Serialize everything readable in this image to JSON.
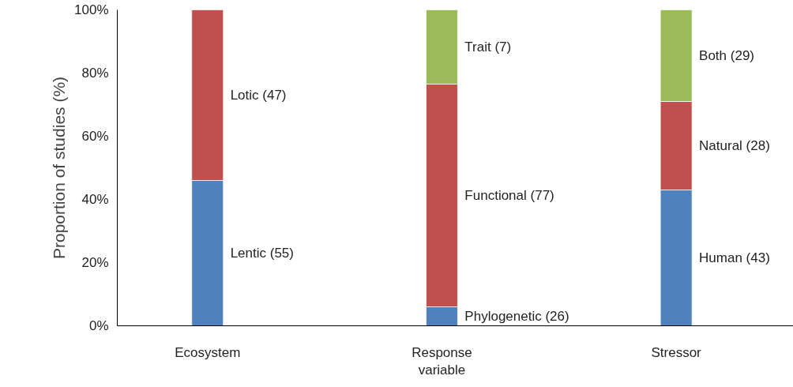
{
  "chart_data": {
    "type": "bar",
    "stacked": true,
    "ylabel": "Proportion of studies (%)",
    "categories": [
      "Ecosystem",
      "Response variable",
      "Stressor"
    ],
    "series": [
      {
        "color": "#4f81bd",
        "values": [
          46,
          6,
          43
        ]
      },
      {
        "color": "#c0504d",
        "values": [
          54,
          70.5,
          28
        ]
      },
      {
        "color": "#9bbb59",
        "values": [
          null,
          23.5,
          29
        ]
      }
    ],
    "ylim": [
      0,
      100
    ],
    "yticks": [
      {
        "value": 0,
        "label": "0%"
      },
      {
        "value": 20,
        "label": "20%"
      },
      {
        "value": 40,
        "label": "40%"
      },
      {
        "value": 60,
        "label": "60%"
      },
      {
        "value": 80,
        "label": "80%"
      },
      {
        "value": 100,
        "label": "100%"
      }
    ],
    "grid": false,
    "annotations": [
      "Lentic (55)",
      "Lotic (47)",
      "Phylogenetic (26)",
      "Functional (77)",
      "Trait (7)",
      "Human (43)",
      "Natural (28)",
      "Both (29)"
    ]
  }
}
